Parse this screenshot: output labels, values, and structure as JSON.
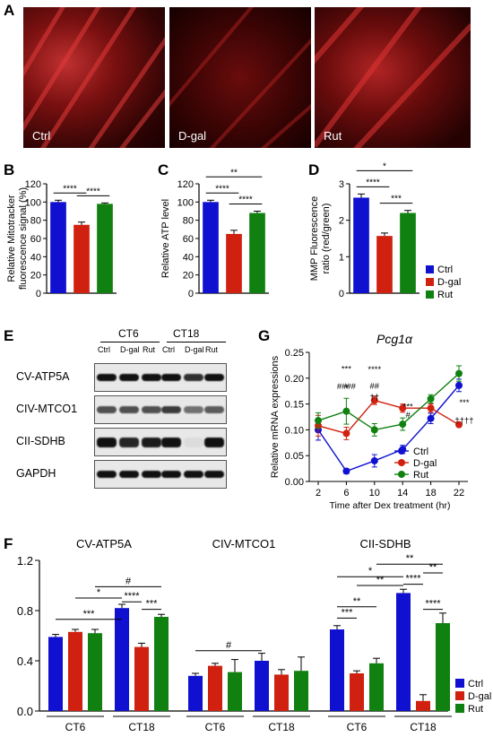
{
  "panels": {
    "a": "A",
    "b": "B",
    "c": "C",
    "d": "D",
    "e": "E",
    "f": "F",
    "g": "G"
  },
  "micro": {
    "labels": [
      "Ctrl",
      "D-gal",
      "Rut"
    ]
  },
  "colors": {
    "ctrl": "#1010d0",
    "dgal": "#d02010",
    "rut": "#108010"
  },
  "legend_bd": [
    "Ctrl",
    "D-gal",
    "Rut"
  ],
  "chart_data": [
    {
      "id": "B",
      "type": "bar",
      "ylabel": "Relative Mitotracker fluorescence signal (%)",
      "ylim": [
        0,
        120
      ],
      "yticks": [
        0,
        20,
        40,
        60,
        80,
        100,
        120
      ],
      "categories": [
        "Ctrl",
        "D-gal",
        "Rut"
      ],
      "values": [
        100,
        75,
        98
      ],
      "errors": [
        2,
        3,
        1
      ],
      "sig": [
        {
          "a": 0,
          "b": 1,
          "label": "****"
        },
        {
          "a": 1,
          "b": 2,
          "label": "****"
        }
      ]
    },
    {
      "id": "C",
      "type": "bar",
      "ylabel": "Relative ATP level",
      "ylim": [
        0,
        120
      ],
      "yticks": [
        0,
        20,
        40,
        60,
        80,
        100,
        120
      ],
      "categories": [
        "Ctrl",
        "D-gal",
        "Rut"
      ],
      "values": [
        100,
        65,
        88
      ],
      "errors": [
        2,
        4,
        2
      ],
      "sig": [
        {
          "a": 0,
          "b": 1,
          "label": "****"
        },
        {
          "a": 1,
          "b": 2,
          "label": "****"
        },
        {
          "a": 0,
          "b": 2,
          "label": "**"
        }
      ]
    },
    {
      "id": "D",
      "type": "bar",
      "ylabel": "MMP Fluorescence ratio (red/green)",
      "ylim": [
        0,
        3
      ],
      "yticks": [
        0,
        1,
        2,
        3
      ],
      "categories": [
        "Ctrl",
        "D-gal",
        "Rut"
      ],
      "values": [
        2.62,
        1.57,
        2.2
      ],
      "errors": [
        0.1,
        0.08,
        0.07
      ],
      "sig": [
        {
          "a": 0,
          "b": 1,
          "label": "****"
        },
        {
          "a": 1,
          "b": 2,
          "label": "***"
        },
        {
          "a": 0,
          "b": 2,
          "label": "*"
        }
      ]
    },
    {
      "id": "G",
      "type": "line",
      "title": "Pcg1α",
      "ylabel": "Relative mRNA expressions",
      "xlabel": "Time after Dex treatment (hr)",
      "x": [
        2,
        6,
        10,
        14,
        18,
        22
      ],
      "ylim": [
        0,
        0.25
      ],
      "yticks": [
        "0.00",
        "0.05",
        "0.10",
        "0.15",
        "0.20",
        "0.25"
      ],
      "series": [
        {
          "name": "Ctrl",
          "values": [
            0.1,
            0.02,
            0.04,
            0.062,
            0.122,
            0.186
          ],
          "errors": [
            0.02,
            0.005,
            0.012,
            0.008,
            0.01,
            0.012
          ]
        },
        {
          "name": "D-gal",
          "values": [
            0.108,
            0.093,
            0.157,
            0.142,
            0.142,
            0.11
          ],
          "errors": [
            0.02,
            0.012,
            0.008,
            0.008,
            0.008,
            0.004
          ]
        },
        {
          "name": "Rut",
          "values": [
            0.118,
            0.136,
            0.1,
            0.111,
            0.16,
            0.209
          ],
          "errors": [
            0.015,
            0.025,
            0.012,
            0.012,
            0.008,
            0.015
          ]
        }
      ],
      "annotations": [
        "+",
        "***",
        "####",
        "****",
        "##",
        "††",
        "#",
        "***",
        "***",
        "††††"
      ]
    },
    {
      "id": "F",
      "type": "bar",
      "ylim": [
        0,
        1.2
      ],
      "yticks": [
        "0.0",
        "0.4",
        "0.8",
        "1.2"
      ],
      "groups": [
        {
          "title": "CV-ATP5A",
          "subgroups": [
            "CT6",
            "CT18"
          ],
          "values": [
            [
              0.59,
              0.63,
              0.62
            ],
            [
              0.82,
              0.51,
              0.75
            ]
          ],
          "errors": [
            [
              0.02,
              0.02,
              0.03
            ],
            [
              0.03,
              0.03,
              0.02
            ]
          ]
        },
        {
          "title": "CIV-MTCO1",
          "subgroups": [
            "CT6",
            "CT18"
          ],
          "values": [
            [
              0.28,
              0.36,
              0.31
            ],
            [
              0.4,
              0.29,
              0.32
            ]
          ],
          "errors": [
            [
              0.02,
              0.02,
              0.1
            ],
            [
              0.06,
              0.04,
              0.11
            ]
          ]
        },
        {
          "title": "CII-SDHB",
          "subgroups": [
            "CT6",
            "CT18"
          ],
          "values": [
            [
              0.65,
              0.3,
              0.38
            ],
            [
              0.94,
              0.08,
              0.7
            ]
          ],
          "errors": [
            [
              0.03,
              0.02,
              0.04
            ],
            [
              0.03,
              0.05,
              0.08
            ]
          ]
        }
      ],
      "sig": [
        "***",
        "*",
        "****",
        "***",
        "#",
        "#",
        "***",
        "**",
        "**",
        "*",
        "****",
        "**",
        "**",
        "****"
      ],
      "legend": [
        "Ctrl",
        "D-gal",
        "Rut"
      ]
    }
  ],
  "western": {
    "groups": [
      "CT6",
      "CT18"
    ],
    "lanes": [
      "Ctrl",
      "D-gal",
      "Rut",
      "Ctrl",
      "D-gal",
      "Rut"
    ],
    "rows": [
      "CV-ATP5A",
      "CIV-MTCO1",
      "CII-SDHB",
      "GAPDH"
    ]
  }
}
